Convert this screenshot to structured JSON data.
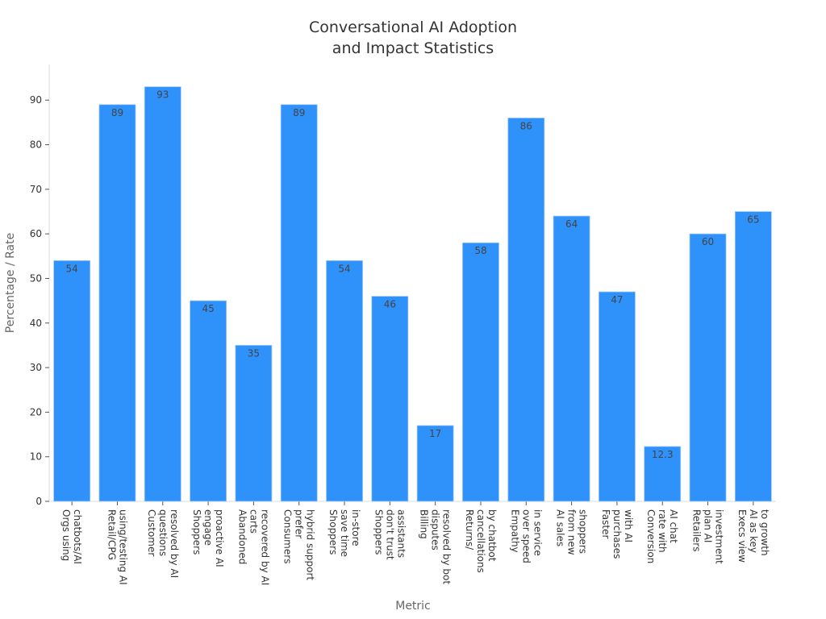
{
  "chart_data": {
    "type": "bar",
    "title": [
      "Conversational AI Adoption",
      "and Impact Statistics"
    ],
    "xlabel": "Metric",
    "ylabel": "Percentage / Rate",
    "ylim": [
      0,
      98
    ],
    "yticks": [
      0,
      10,
      20,
      30,
      40,
      50,
      60,
      70,
      80,
      90
    ],
    "grid": false,
    "bar_color": "#2f91fa",
    "categories": [
      [
        "Orgs using",
        "chatbots/AI"
      ],
      [
        "Retail/CPG",
        "using/testing AI"
      ],
      [
        "Customer",
        "questions",
        "resolved by AI"
      ],
      [
        "Shoppers",
        "engage",
        "proactive AI"
      ],
      [
        "Abandoned",
        "carts",
        "recovered by AI"
      ],
      [
        "Consumers",
        "prefer",
        "hybrid support"
      ],
      [
        "Shoppers",
        "save time",
        "in-store"
      ],
      [
        "Shoppers",
        "don't trust",
        "assistants"
      ],
      [
        "Billing",
        "disputes",
        "resolved by bot"
      ],
      [
        "Returns/",
        "cancellations",
        "by chatbot"
      ],
      [
        "Empathy",
        "over speed",
        "in service"
      ],
      [
        "AI sales",
        "from new",
        "shoppers"
      ],
      [
        "Faster",
        "purchases",
        "with AI"
      ],
      [
        "Conversion",
        "rate with",
        "AI chat"
      ],
      [
        "Retailers",
        "plan AI",
        "investment"
      ],
      [
        "Execs view",
        "AI as key",
        "to growth"
      ]
    ],
    "values": [
      54,
      89,
      93,
      45,
      35,
      89,
      54,
      46,
      17,
      58,
      86,
      64,
      47,
      12.3,
      60,
      65
    ],
    "value_labels": [
      "54",
      "89",
      "93",
      "45",
      "35",
      "89",
      "54",
      "46",
      "17",
      "58",
      "86",
      "64",
      "47",
      "12.3",
      "60",
      "65"
    ]
  }
}
